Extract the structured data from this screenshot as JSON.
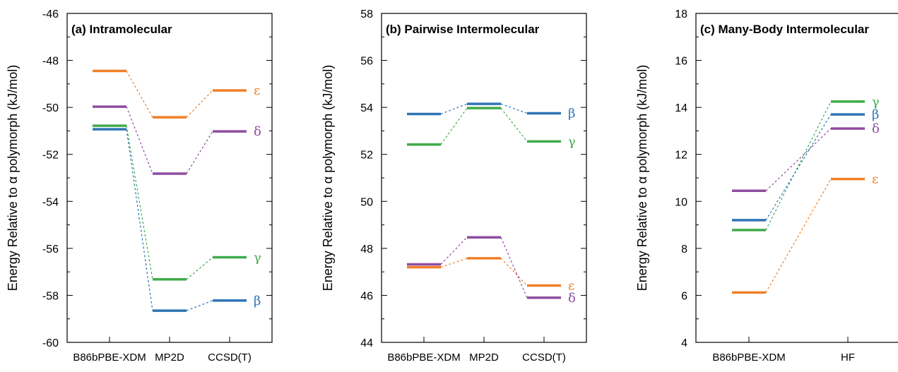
{
  "chart_data": [
    {
      "type": "line",
      "title": "(a) Intramolecular",
      "ylabel": "Energy Relative to α polymorph (kJ/mol)",
      "categories": [
        "B86bPBE-XDM",
        "MP2D",
        "CCSD(T)"
      ],
      "ylim": [
        -60,
        -46
      ],
      "yticks": [
        -60,
        -58,
        -56,
        -54,
        -52,
        -50,
        -48,
        -46
      ],
      "series": [
        {
          "name": "ε",
          "color": "#f07f26",
          "values": [
            -48.45,
            -50.42,
            -49.28
          ]
        },
        {
          "name": "δ",
          "color": "#8e4da0",
          "values": [
            -49.97,
            -52.82,
            -51.02
          ]
        },
        {
          "name": "γ",
          "color": "#3fab4a",
          "values": [
            -50.78,
            -57.32,
            -56.38
          ]
        },
        {
          "name": "β",
          "color": "#2f74b5",
          "values": [
            -50.93,
            -58.65,
            -58.22
          ]
        }
      ]
    },
    {
      "type": "line",
      "title": "(b) Pairwise Intermolecular",
      "ylabel": "Energy Relative to α polymorph (kJ/mol)",
      "categories": [
        "B86bPBE-XDM",
        "MP2D",
        "CCSD(T)"
      ],
      "ylim": [
        44,
        58
      ],
      "yticks": [
        44,
        46,
        48,
        50,
        52,
        54,
        56,
        58
      ],
      "series": [
        {
          "name": "β",
          "color": "#2f74b5",
          "values": [
            53.72,
            54.15,
            53.75
          ]
        },
        {
          "name": "γ",
          "color": "#3fab4a",
          "values": [
            52.42,
            53.97,
            52.55
          ]
        },
        {
          "name": "ε",
          "color": "#f07f26",
          "values": [
            47.2,
            47.58,
            46.42
          ]
        },
        {
          "name": "δ",
          "color": "#8e4da0",
          "values": [
            47.32,
            48.47,
            45.9
          ]
        }
      ]
    },
    {
      "type": "line",
      "title": "(c) Many-Body Intermolecular",
      "ylabel": "Energy Relative to α polymorph (kJ/mol)",
      "categories": [
        "B86bPBE-XDM",
        "HF"
      ],
      "ylim": [
        4,
        18
      ],
      "yticks": [
        4,
        6,
        8,
        10,
        12,
        14,
        16,
        18
      ],
      "series": [
        {
          "name": "γ",
          "color": "#3fab4a",
          "values": [
            8.78,
            14.25
          ]
        },
        {
          "name": "β",
          "color": "#2f74b5",
          "values": [
            9.2,
            13.7
          ]
        },
        {
          "name": "δ",
          "color": "#8e4da0",
          "values": [
            10.45,
            13.1
          ]
        },
        {
          "name": "ε",
          "color": "#f07f26",
          "values": [
            6.12,
            10.95
          ]
        }
      ]
    }
  ]
}
